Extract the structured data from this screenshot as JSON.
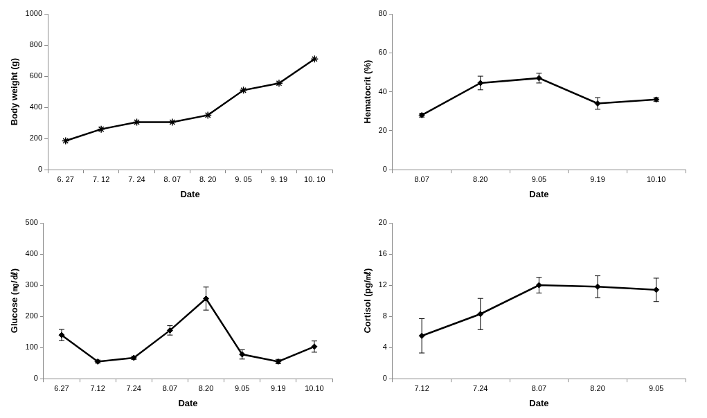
{
  "chart_data": [
    {
      "type": "line",
      "y_label": "Body weight (g)",
      "x_label": "Date",
      "categories": [
        "6. 27",
        "7. 12",
        "7. 24",
        "8. 07",
        "8. 20",
        "9. 05",
        "9. 19",
        "10. 10"
      ],
      "values": [
        185,
        260,
        305,
        305,
        350,
        510,
        555,
        710
      ],
      "color": "#000000",
      "marker": "star",
      "grid": false,
      "ylim": [
        0,
        1000
      ],
      "yticks": [
        0,
        200,
        400,
        600,
        800,
        1000
      ]
    },
    {
      "type": "line",
      "y_label": "Hematocrit (%)",
      "x_label": "Date",
      "categories": [
        "8.07",
        "8.20",
        "9.05",
        "9.19",
        "10.10"
      ],
      "values": [
        28,
        44.5,
        47,
        34,
        36
      ],
      "errors": [
        1,
        3.5,
        2.5,
        3,
        1
      ],
      "color": "#000000",
      "marker": "diamond",
      "grid": false,
      "ylim": [
        0,
        80
      ],
      "yticks": [
        0,
        20,
        40,
        60,
        80
      ]
    },
    {
      "type": "line",
      "y_label": "Glucose (㎎/㎗)",
      "x_label": "Date",
      "categories": [
        "6.27",
        "7.12",
        "7.24",
        "8.07",
        "8.20",
        "9.05",
        "9.19",
        "10.10"
      ],
      "values": [
        140,
        55,
        67,
        155,
        257,
        78,
        55,
        103
      ],
      "errors": [
        18,
        5,
        5,
        15,
        37,
        15,
        7,
        18
      ],
      "color": "#000000",
      "marker": "diamond",
      "grid": false,
      "ylim": [
        0,
        500
      ],
      "yticks": [
        0,
        100,
        200,
        300,
        400,
        500
      ]
    },
    {
      "type": "line",
      "y_label": "Cortisol (pg/㎖)",
      "x_label": "Date",
      "categories": [
        "7.12",
        "7.24",
        "8.07",
        "8.20",
        "9.05"
      ],
      "values": [
        5.5,
        8.3,
        12,
        11.8,
        11.4
      ],
      "errors": [
        2.2,
        2,
        1,
        1.4,
        1.5
      ],
      "color": "#000000",
      "marker": "diamond",
      "grid": false,
      "ylim": [
        0,
        20
      ],
      "yticks": [
        0,
        4,
        8,
        12,
        16,
        20
      ]
    }
  ]
}
